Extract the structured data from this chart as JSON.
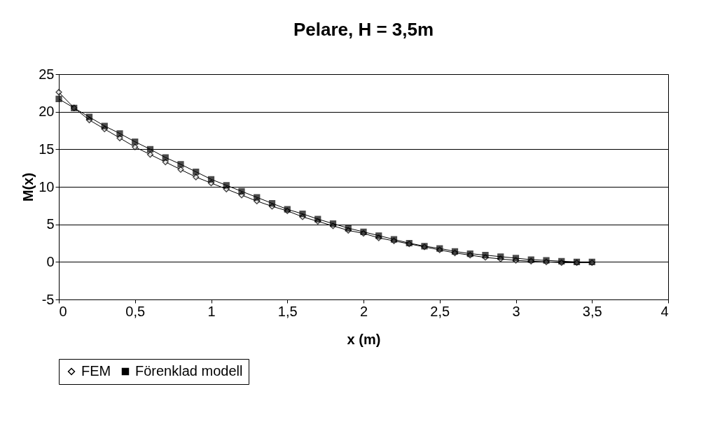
{
  "chart_data": {
    "type": "line",
    "title": "Pelare, H = 3,5m",
    "xlabel": "x (m)",
    "ylabel": "M(x)",
    "x": [
      0,
      0.1,
      0.2,
      0.3,
      0.4,
      0.5,
      0.6,
      0.7,
      0.8,
      0.9,
      1.0,
      1.1,
      1.2,
      1.3,
      1.4,
      1.5,
      1.6,
      1.7,
      1.8,
      1.9,
      2.0,
      2.1,
      2.2,
      2.3,
      2.4,
      2.5,
      2.6,
      2.7,
      2.8,
      2.9,
      3.0,
      3.1,
      3.2,
      3.3,
      3.4,
      3.5
    ],
    "series": [
      {
        "name": "FEM",
        "color": "#000000",
        "marker": "diamond",
        "values": [
          22.6,
          20.5,
          18.9,
          17.7,
          16.5,
          15.3,
          14.3,
          13.3,
          12.3,
          11.3,
          10.5,
          9.7,
          8.9,
          8.1,
          7.4,
          6.8,
          6.0,
          5.4,
          4.8,
          4.2,
          3.8,
          3.2,
          2.8,
          2.4,
          2.0,
          1.6,
          1.2,
          0.9,
          0.6,
          0.4,
          0.2,
          0.1,
          0.0,
          -0.1,
          -0.1,
          -0.1
        ]
      },
      {
        "name": "Förenklad modell",
        "color": "#000000",
        "marker": "square",
        "values": [
          21.7,
          20.5,
          19.3,
          18.1,
          17.1,
          16.0,
          15.0,
          13.9,
          13.0,
          12.0,
          11.0,
          10.2,
          9.4,
          8.6,
          7.8,
          7.0,
          6.4,
          5.7,
          5.1,
          4.5,
          4.0,
          3.5,
          3.0,
          2.5,
          2.1,
          1.8,
          1.4,
          1.1,
          0.9,
          0.7,
          0.5,
          0.3,
          0.2,
          0.1,
          0.0,
          0.0
        ]
      }
    ],
    "xlim": [
      0,
      4
    ],
    "xticks": [
      0,
      {
        "value": 0.5,
        "label": "0,5"
      },
      1,
      {
        "value": 1.5,
        "label": "1,5"
      },
      2,
      {
        "value": 2.5,
        "label": "2,5"
      },
      3,
      {
        "value": 3.5,
        "label": "3,5"
      },
      4
    ],
    "ylim": [
      -5,
      25
    ],
    "yticks": [
      -5,
      0,
      5,
      10,
      15,
      20,
      25
    ],
    "grid": "y",
    "legend": "bottom",
    "line_style": "solid"
  }
}
